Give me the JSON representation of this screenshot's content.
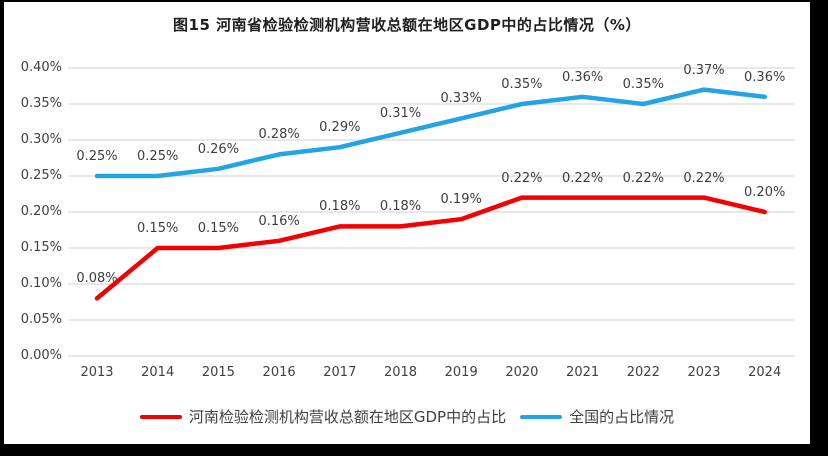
{
  "title": "图15  河南省检验检测机构营收总额在地区GDP中的占比情况（%）",
  "colors": {
    "henan_line": "#f50000",
    "national_line": "#23a5e4",
    "gridline": "#d9d9d9",
    "axis_text": "#404040",
    "frame_border": "#000000"
  },
  "chart_data": {
    "type": "line",
    "title": "图15  河南省检验检测机构营收总额在地区GDP中的占比情况（%）",
    "categories": [
      "2013",
      "2014",
      "2015",
      "2016",
      "2017",
      "2018",
      "2019",
      "2020",
      "2021",
      "2022",
      "2023",
      "2024"
    ],
    "series": [
      {
        "name": "河南检验检测机构营收总额在地区GDP中的占比",
        "color": "#f50000",
        "values": [
          0.08,
          0.15,
          0.15,
          0.16,
          0.18,
          0.18,
          0.19,
          0.22,
          0.22,
          0.22,
          0.22,
          0.2
        ],
        "labels": [
          "0.08%",
          "0.15%",
          "0.15%",
          "0.16%",
          "0.18%",
          "0.18%",
          "0.19%",
          "0.22%",
          "0.22%",
          "0.22%",
          "0.22%",
          "0.20%"
        ]
      },
      {
        "name": "全国的占比情况",
        "color": "#23a5e4",
        "values": [
          0.25,
          0.25,
          0.26,
          0.28,
          0.29,
          0.31,
          0.33,
          0.35,
          0.36,
          0.35,
          0.37,
          0.36
        ],
        "labels": [
          "0.25%",
          "0.25%",
          "0.26%",
          "0.28%",
          "0.29%",
          "0.31%",
          "0.33%",
          "0.35%",
          "0.36%",
          "0.35%",
          "0.37%",
          "0.36%"
        ]
      }
    ],
    "xlabel": "",
    "ylabel": "",
    "ylim": [
      0,
      0.4
    ],
    "y_tick_step": 0.05,
    "y_ticks": [
      "0.00%",
      "0.05%",
      "0.10%",
      "0.15%",
      "0.20%",
      "0.25%",
      "0.30%",
      "0.35%",
      "0.40%"
    ],
    "grid": true,
    "legend_position": "bottom"
  }
}
